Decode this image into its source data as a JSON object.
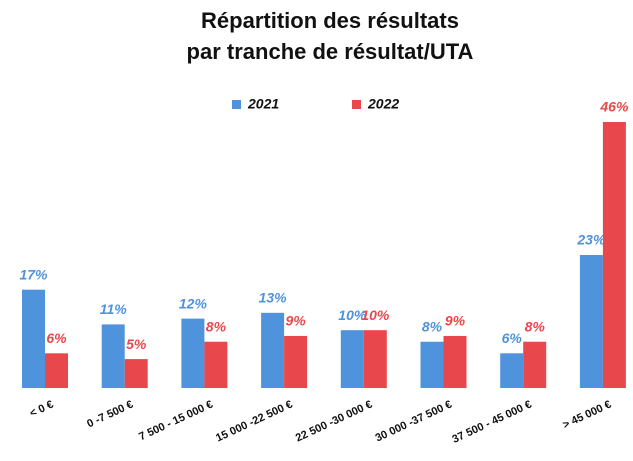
{
  "chart_data": {
    "type": "bar",
    "title": [
      "Répartition des résultats",
      "par tranche de résultat/UTA"
    ],
    "categories": [
      "< 0 €",
      "0 -7 500 €",
      "7 500 - 15 000 €",
      "15 000 -22 500 €",
      "22 500  -30 000 €",
      "30 000 -37 500 €",
      "37 500 - 45 000 €",
      "> 45 000 €"
    ],
    "series": [
      {
        "name": "2021",
        "color": "#4f93dc",
        "values": [
          17,
          11,
          12,
          13,
          10,
          8,
          6,
          23
        ],
        "value_labels": [
          "17%",
          "11%",
          "12%",
          "13%",
          "10%",
          "8%",
          "6%",
          "23%"
        ]
      },
      {
        "name": "2022",
        "color": "#e8484c",
        "values": [
          6,
          5,
          8,
          9,
          10,
          9,
          8,
          46
        ],
        "value_labels": [
          "6%",
          "5%",
          "8%",
          "9%",
          "10%",
          "9%",
          "8%",
          "46%"
        ]
      }
    ],
    "legend": "top"
  }
}
